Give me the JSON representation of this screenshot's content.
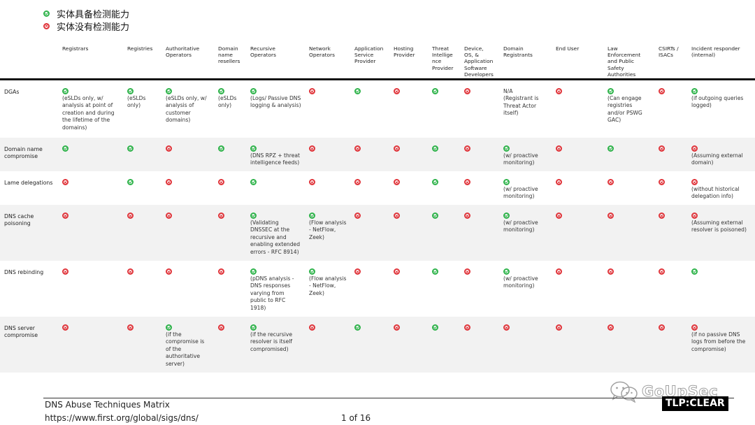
{
  "legend": {
    "yes_label": "实体具备检测能力",
    "no_label": "实体没有检测能力",
    "yes_color": "#2eb34a",
    "no_color": "#e0343a"
  },
  "columns": [
    "Registrars",
    "Registries",
    "Authoritative\nOperators",
    "Domain\nname\nresellers",
    "Recursive\nOperators",
    "Network\nOperators",
    "Application\nService\nProvider",
    "Hosting\nProvider",
    "Threat\nIntellige\nnce\nProvider",
    "Device,\nOS, &\nApplication\nSoftware\nDevelopers",
    "Domain\nRegistrants",
    "End User",
    "Law\nEnforcement\nand Public\nSafety\nAuthorities",
    "CSIRTs /\nISACs",
    "Incident responder\n(internal)"
  ],
  "rows": [
    {
      "label": "DGAs",
      "cells": [
        {
          "s": "yes",
          "note": "(eSLDs only, w/\nanalysis at point of\ncreation and during\nthe lifetime of the\ndomains)"
        },
        {
          "s": "yes",
          "note": "(eSLDs\nonly)"
        },
        {
          "s": "yes",
          "note": "(eSLDs only, w/\nanalysis of\ncustomer\ndomains)"
        },
        {
          "s": "yes",
          "note": "(eSLDs\nonly)"
        },
        {
          "s": "yes",
          "note": "(Logs/ Passive DNS\nlogging & analysis)"
        },
        {
          "s": "no",
          "note": ""
        },
        {
          "s": "yes",
          "note": ""
        },
        {
          "s": "no",
          "note": ""
        },
        {
          "s": "yes",
          "note": ""
        },
        {
          "s": "no",
          "note": ""
        },
        {
          "s": "none",
          "note": "N/A\n(Registrant is\nThreat Actor\nitself)"
        },
        {
          "s": "no",
          "note": ""
        },
        {
          "s": "yes",
          "note": "(Can engage\nregistries\nand/or PSWG\nGAC)"
        },
        {
          "s": "no",
          "note": ""
        },
        {
          "s": "yes",
          "note": "(if outgoing queries\nlogged)"
        }
      ]
    },
    {
      "label": "Domain name\ncompromise",
      "cells": [
        {
          "s": "yes",
          "note": ""
        },
        {
          "s": "yes",
          "note": ""
        },
        {
          "s": "no",
          "note": ""
        },
        {
          "s": "yes",
          "note": ""
        },
        {
          "s": "yes",
          "note": "(DNS RPZ + threat\nintelligence feeds)"
        },
        {
          "s": "no",
          "note": ""
        },
        {
          "s": "no",
          "note": ""
        },
        {
          "s": "no",
          "note": ""
        },
        {
          "s": "yes",
          "note": ""
        },
        {
          "s": "no",
          "note": ""
        },
        {
          "s": "yes",
          "note": "(w/ proactive\nmonitoring)"
        },
        {
          "s": "no",
          "note": ""
        },
        {
          "s": "yes",
          "note": ""
        },
        {
          "s": "no",
          "note": ""
        },
        {
          "s": "no",
          "note": "(Assuming external\ndomain)"
        }
      ]
    },
    {
      "label": "Lame delegations",
      "cells": [
        {
          "s": "no",
          "note": ""
        },
        {
          "s": "yes",
          "note": ""
        },
        {
          "s": "no",
          "note": ""
        },
        {
          "s": "no",
          "note": ""
        },
        {
          "s": "yes",
          "note": ""
        },
        {
          "s": "no",
          "note": ""
        },
        {
          "s": "no",
          "note": ""
        },
        {
          "s": "no",
          "note": ""
        },
        {
          "s": "yes",
          "note": ""
        },
        {
          "s": "no",
          "note": ""
        },
        {
          "s": "yes",
          "note": "(w/ proactive\nmonitoring)"
        },
        {
          "s": "no",
          "note": ""
        },
        {
          "s": "no",
          "note": ""
        },
        {
          "s": "no",
          "note": ""
        },
        {
          "s": "no",
          "note": "(without historical\ndelegation info)"
        }
      ]
    },
    {
      "label": "DNS cache\npoisoning",
      "cells": [
        {
          "s": "no",
          "note": ""
        },
        {
          "s": "no",
          "note": ""
        },
        {
          "s": "no",
          "note": ""
        },
        {
          "s": "no",
          "note": ""
        },
        {
          "s": "yes",
          "note": "(Validating\nDNSSEC at the\nrecursive and\nenabling extended\nerrors - RFC 8914)"
        },
        {
          "s": "yes",
          "note": "(Flow analysis\n- NetFlow,\nZeek)"
        },
        {
          "s": "no",
          "note": ""
        },
        {
          "s": "no",
          "note": ""
        },
        {
          "s": "yes",
          "note": ""
        },
        {
          "s": "no",
          "note": ""
        },
        {
          "s": "yes",
          "note": "(w/ proactive\nmonitoring)"
        },
        {
          "s": "no",
          "note": ""
        },
        {
          "s": "no",
          "note": ""
        },
        {
          "s": "no",
          "note": ""
        },
        {
          "s": "no",
          "note": "(Assuming external\nresolver is poisoned)"
        }
      ]
    },
    {
      "label": "DNS rebinding",
      "cells": [
        {
          "s": "no",
          "note": ""
        },
        {
          "s": "no",
          "note": ""
        },
        {
          "s": "no",
          "note": ""
        },
        {
          "s": "no",
          "note": ""
        },
        {
          "s": "yes",
          "note": "(pDNS analysis -\nDNS responses\nvarying from\npublic to RFC\n1918)"
        },
        {
          "s": "yes",
          "note": "(Flow analysis\n- NetFlow,\nZeek)"
        },
        {
          "s": "no",
          "note": ""
        },
        {
          "s": "no",
          "note": ""
        },
        {
          "s": "yes",
          "note": ""
        },
        {
          "s": "no",
          "note": ""
        },
        {
          "s": "yes",
          "note": "(w/ proactive\nmonitoring)"
        },
        {
          "s": "no",
          "note": ""
        },
        {
          "s": "no",
          "note": ""
        },
        {
          "s": "no",
          "note": ""
        },
        {
          "s": "yes",
          "note": ""
        }
      ]
    },
    {
      "label": "DNS server\ncompromise",
      "cells": [
        {
          "s": "no",
          "note": ""
        },
        {
          "s": "no",
          "note": ""
        },
        {
          "s": "yes",
          "note": "(if the\ncompromise is\nof the\nauthoritative\nserver)"
        },
        {
          "s": "no",
          "note": ""
        },
        {
          "s": "yes",
          "note": "(if the recursive\nresolver is itself\ncompromised)"
        },
        {
          "s": "no",
          "note": ""
        },
        {
          "s": "yes",
          "note": ""
        },
        {
          "s": "no",
          "note": ""
        },
        {
          "s": "yes",
          "note": ""
        },
        {
          "s": "no",
          "note": ""
        },
        {
          "s": "no",
          "note": ""
        },
        {
          "s": "no",
          "note": ""
        },
        {
          "s": "no",
          "note": ""
        },
        {
          "s": "no",
          "note": ""
        },
        {
          "s": "no",
          "note": "(if no passive DNS\nlogs from before the\ncompromise)"
        }
      ]
    }
  ],
  "footer": {
    "title": "DNS Abuse Techniques Matrix",
    "url": "https://www.first.org/global/sigs/dns/",
    "page": "1 of 16",
    "watermark": "GoUpSec",
    "tlp": "TLP:CLEAR"
  }
}
